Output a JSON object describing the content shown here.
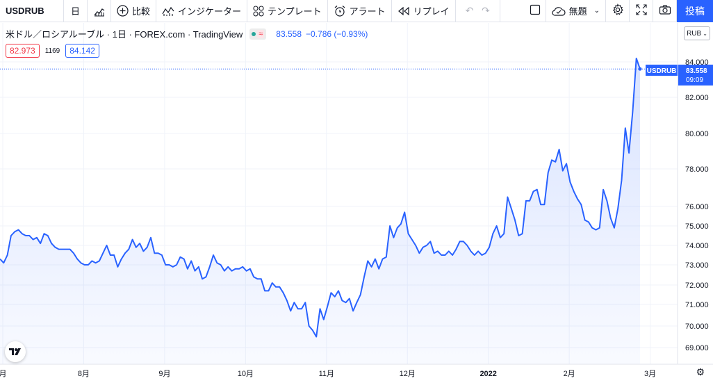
{
  "toolbar": {
    "symbol": "USDRUB",
    "interval": "日",
    "compare": "比較",
    "indicators": "インジケーター",
    "templates": "テンプレート",
    "alert": "アラート",
    "replay": "リプレイ",
    "layout_name": "無題",
    "publish": "投稿"
  },
  "legend": {
    "title": "米ドル／ロシアルーブル · 1日 · FOREX.com · TradingView",
    "price": "83.558",
    "change": "−0.786 (−0.93%)"
  },
  "quotes": {
    "sell": "82.973",
    "spread": "1169",
    "buy": "84.142"
  },
  "currency_selector": "RUB",
  "colors": {
    "line": "#2962ff",
    "accent": "#2962ff",
    "sell": "#f23645"
  },
  "icons": [
    "bar-chart-icon",
    "plus-circle-icon",
    "indicators-icon",
    "templates-icon",
    "alarm-icon",
    "replay-icon",
    "undo-icon",
    "redo-icon",
    "layout-icon",
    "cloud-icon",
    "gear-icon",
    "fullscreen-icon",
    "camera-icon",
    "tradingview-logo-icon"
  ],
  "chart_data": {
    "type": "area",
    "symbol_label": "USDRUB",
    "last_price": "83.558",
    "countdown": "09:09",
    "y_ticks": [
      "69.000",
      "70.000",
      "71.000",
      "72.000",
      "73.000",
      "74.000",
      "75.000",
      "76.000",
      "78.000",
      "80.000",
      "82.000",
      "84.000"
    ],
    "x_ticks": [
      {
        "label": "月",
        "idx": 0
      },
      {
        "label": "8月",
        "idx": 22
      },
      {
        "label": "9月",
        "idx": 44
      },
      {
        "label": "10月",
        "idx": 66
      },
      {
        "label": "11月",
        "idx": 88
      },
      {
        "label": "12月",
        "idx": 110
      },
      {
        "label": "2022",
        "idx": 132
      },
      {
        "label": "2月",
        "idx": 154
      },
      {
        "label": "3月",
        "idx": 176
      }
    ],
    "ylim": [
      68.6,
      84.8
    ],
    "values": [
      73.3,
      73.1,
      73.5,
      74.5,
      74.7,
      74.8,
      74.6,
      74.5,
      74.5,
      74.3,
      74.4,
      74.1,
      74.6,
      74.5,
      74.1,
      73.9,
      73.8,
      73.8,
      73.8,
      73.8,
      73.6,
      73.3,
      73.1,
      73.0,
      73.0,
      73.2,
      73.1,
      73.2,
      73.6,
      74.0,
      73.5,
      73.5,
      72.9,
      73.3,
      73.6,
      73.8,
      74.3,
      73.9,
      74.1,
      73.7,
      73.9,
      74.4,
      73.6,
      73.6,
      73.5,
      73.0,
      73.0,
      72.9,
      73.0,
      73.4,
      73.3,
      72.8,
      73.2,
      72.7,
      72.9,
      72.3,
      72.4,
      72.9,
      73.5,
      73.1,
      73.0,
      72.7,
      72.9,
      72.7,
      72.8,
      72.8,
      72.9,
      72.7,
      72.8,
      72.4,
      72.3,
      72.3,
      71.7,
      71.7,
      72.1,
      71.9,
      71.9,
      71.6,
      71.2,
      70.7,
      71.1,
      70.8,
      70.8,
      71.1,
      70.0,
      69.8,
      69.5,
      70.8,
      70.3,
      70.9,
      71.6,
      71.4,
      71.7,
      71.2,
      71.1,
      71.3,
      70.7,
      71.1,
      71.5,
      72.4,
      73.2,
      72.9,
      73.3,
      72.8,
      73.3,
      73.4,
      75.0,
      74.4,
      74.9,
      75.1,
      75.7,
      74.6,
      74.3,
      74.0,
      73.6,
      73.9,
      74.0,
      74.2,
      73.6,
      73.7,
      73.5,
      73.5,
      73.7,
      73.5,
      73.8,
      74.2,
      74.2,
      74.0,
      73.7,
      73.5,
      73.7,
      73.5,
      73.6,
      73.9,
      74.6,
      75.0,
      74.4,
      74.6,
      76.5,
      75.9,
      75.3,
      74.5,
      74.6,
      76.3,
      76.3,
      76.8,
      76.9,
      76.1,
      76.1,
      77.8,
      78.5,
      78.4,
      79.1,
      77.9,
      78.3,
      77.3,
      76.8,
      76.4,
      76.1,
      75.3,
      75.2,
      74.9,
      74.8,
      74.9,
      76.9,
      76.3,
      75.4,
      74.9,
      75.9,
      77.4,
      80.3,
      78.9,
      81.2,
      84.2,
      83.6
    ]
  }
}
